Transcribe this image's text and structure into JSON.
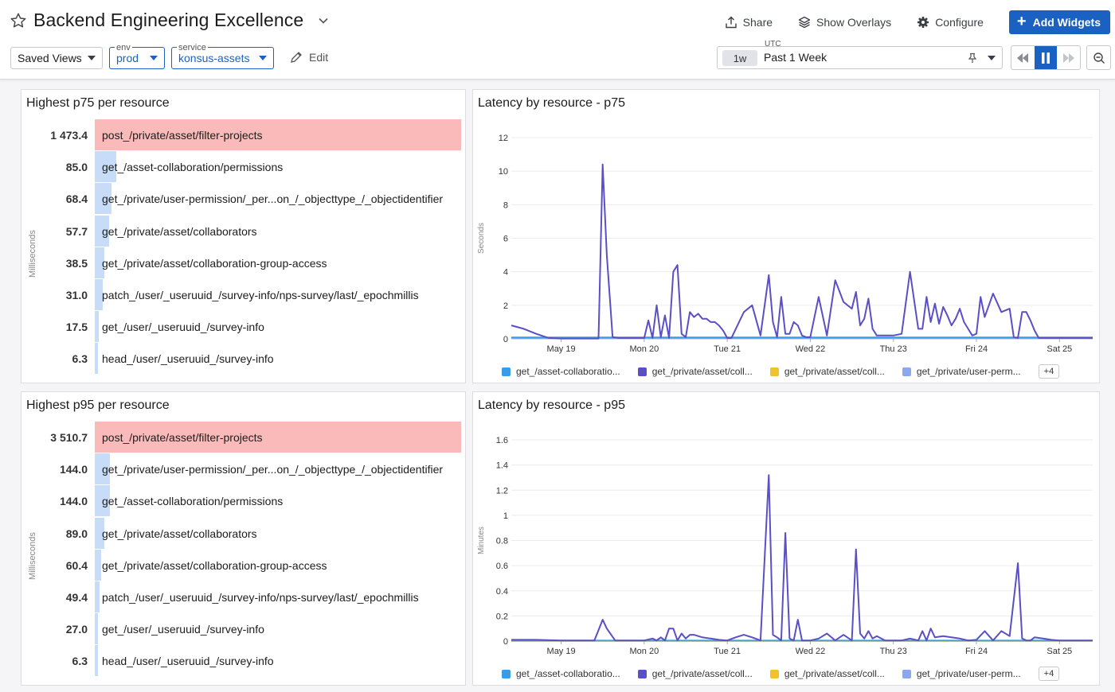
{
  "dashboard": {
    "title": "Backend Engineering Excellence",
    "actions": {
      "share": "Share",
      "overlays": "Show Overlays",
      "configure": "Configure",
      "add_widgets": "Add Widgets"
    },
    "controls": {
      "saved_views": "Saved Views",
      "env_label": "env",
      "env_value": "prod",
      "service_label": "service",
      "service_value": "konsus-assets",
      "edit": "Edit"
    },
    "time": {
      "timezone": "UTC",
      "shortcut": "1w",
      "label": "Past 1 Week"
    },
    "colors": {
      "accent": "#1a61c2",
      "series_main": "#5b4fc5",
      "bar": "#c6dcf7",
      "bar_top": "#fbbaba"
    }
  },
  "widgets": {
    "p75_toplist": {
      "title": "Highest p75 per resource",
      "unit": "Milliseconds",
      "rows": [
        {
          "value": "1 473.4",
          "num": 1473.4,
          "name": "post_/private/asset/filter-projects"
        },
        {
          "value": "85.0",
          "num": 85.0,
          "name": "get_/asset-collaboration/permissions"
        },
        {
          "value": "68.4",
          "num": 68.4,
          "name": "get_/private/user-permission/_per...on_/_objecttype_/_objectidentifier"
        },
        {
          "value": "57.7",
          "num": 57.7,
          "name": "get_/private/asset/collaborators"
        },
        {
          "value": "38.5",
          "num": 38.5,
          "name": "get_/private/asset/collaboration-group-access"
        },
        {
          "value": "31.0",
          "num": 31.0,
          "name": "patch_/user/_useruuid_/survey-info/nps-survey/last/_epochmillis"
        },
        {
          "value": "17.5",
          "num": 17.5,
          "name": "get_/user/_useruuid_/survey-info"
        },
        {
          "value": "6.3",
          "num": 6.3,
          "name": "head_/user/_useruuid_/survey-info"
        }
      ]
    },
    "p95_toplist": {
      "title": "Highest p95 per resource",
      "unit": "Milliseconds",
      "rows": [
        {
          "value": "3 510.7",
          "num": 3510.7,
          "name": "post_/private/asset/filter-projects"
        },
        {
          "value": "144.0",
          "num": 144.0,
          "name": "get_/private/user-permission/_per...on_/_objecttype_/_objectidentifier"
        },
        {
          "value": "144.0",
          "num": 144.0,
          "name": "get_/asset-collaboration/permissions"
        },
        {
          "value": "89.0",
          "num": 89.0,
          "name": "get_/private/asset/collaborators"
        },
        {
          "value": "60.4",
          "num": 60.4,
          "name": "get_/private/asset/collaboration-group-access"
        },
        {
          "value": "49.4",
          "num": 49.4,
          "name": "patch_/user/_useruuid_/survey-info/nps-survey/last/_epochmillis"
        },
        {
          "value": "27.0",
          "num": 27.0,
          "name": "get_/user/_useruuid_/survey-info"
        },
        {
          "value": "6.3",
          "num": 6.3,
          "name": "head_/user/_useruuid_/survey-info"
        }
      ]
    },
    "p75_line": {
      "title": "Latency by resource - p75",
      "legend_more": "+4"
    },
    "p95_line": {
      "title": "Latency by resource - p95",
      "legend_more": "+4"
    }
  },
  "chart_data": [
    {
      "type": "line",
      "title": "Latency by resource - p75",
      "ylabel": "Seconds",
      "ylim": [
        0,
        12
      ],
      "yticks": [
        "0",
        "2",
        "4",
        "6",
        "8",
        "10",
        "12"
      ],
      "xticks": [
        "May 19",
        "Mon 20",
        "Tue 21",
        "Wed 22",
        "Thu 23",
        "Fri 24",
        "Sat 25"
      ],
      "xlim": [
        -0.6,
        6.4
      ],
      "legend": [
        {
          "name": "get_/asset-collaboratio...",
          "color": "#3a9ce8"
        },
        {
          "name": "get_/private/asset/coll...",
          "color": "#5b4fc5"
        },
        {
          "name": "get_/private/asset/coll...",
          "color": "#f2c12e"
        },
        {
          "name": "get_/private/user-perm...",
          "color": "#8aa8f0"
        }
      ],
      "series": [
        {
          "color": "#5b4fc5",
          "x": [
            -0.6,
            -0.45,
            -0.3,
            -0.15,
            0.0,
            0.1,
            0.2,
            0.3,
            0.45,
            0.5,
            0.55,
            0.62,
            0.7,
            0.8,
            0.9,
            1.0,
            1.05,
            1.1,
            1.15,
            1.2,
            1.25,
            1.3,
            1.35,
            1.4,
            1.45,
            1.5,
            1.55,
            1.6,
            1.65,
            1.7,
            1.75,
            1.8,
            1.85,
            1.9,
            1.95,
            2.0,
            2.05,
            2.2,
            2.3,
            2.4,
            2.5,
            2.55,
            2.6,
            2.65,
            2.7,
            2.75,
            2.8,
            2.85,
            2.9,
            2.95,
            3.0,
            3.1,
            3.2,
            3.3,
            3.4,
            3.5,
            3.55,
            3.6,
            3.65,
            3.7,
            3.75,
            3.8,
            3.85,
            3.9,
            4.0,
            4.1,
            4.2,
            4.3,
            4.35,
            4.4,
            4.45,
            4.5,
            4.55,
            4.6,
            4.65,
            4.7,
            4.75,
            4.8,
            4.85,
            4.9,
            4.95,
            5.0,
            5.05,
            5.1,
            5.2,
            5.3,
            5.4,
            5.45,
            5.5,
            5.55,
            5.6,
            5.65,
            5.7,
            5.75,
            5.8,
            5.85,
            5.9,
            5.95,
            6.0,
            6.1,
            6.2,
            6.3,
            6.4
          ],
          "y": [
            0.8,
            0.6,
            0.3,
            0.05,
            0.02,
            0.02,
            0.02,
            0.02,
            0.02,
            10.4,
            5.0,
            0.1,
            0.05,
            0.05,
            0.05,
            0.05,
            1.1,
            0.05,
            2.0,
            0.1,
            1.4,
            0.05,
            4.0,
            4.4,
            0.3,
            0.1,
            1.6,
            1.3,
            1.5,
            1.2,
            1.2,
            1.0,
            1.0,
            0.8,
            0.5,
            0.05,
            0.05,
            1.6,
            2.0,
            0.2,
            3.8,
            1.0,
            0.1,
            2.5,
            0.3,
            0.3,
            1.0,
            0.8,
            0.2,
            0.1,
            0.1,
            2.5,
            0.2,
            3.5,
            2.2,
            1.8,
            2.8,
            0.8,
            1.2,
            2.4,
            0.6,
            0.2,
            0.2,
            0.2,
            0.2,
            0.3,
            4.0,
            0.6,
            0.6,
            2.5,
            1.0,
            2.1,
            0.9,
            1.9,
            1.4,
            0.8,
            1.2,
            1.8,
            1.0,
            0.6,
            0.2,
            0.3,
            2.5,
            1.3,
            2.7,
            1.6,
            1.8,
            0.1,
            0.05,
            1.6,
            1.6,
            1.1,
            0.5,
            0.05,
            0.05,
            0.05,
            0.05,
            0.05,
            0.05,
            0.05,
            0.05,
            0.05,
            0.05
          ]
        },
        {
          "color": "#3a9ce8",
          "x": [
            -0.6,
            6.4
          ],
          "y": [
            0.08,
            0.08
          ]
        },
        {
          "color": "#8aa8f0",
          "x": [
            -0.6,
            6.4
          ],
          "y": [
            0.04,
            0.04
          ]
        }
      ]
    },
    {
      "type": "line",
      "title": "Latency by resource - p95",
      "ylabel": "Minutes",
      "ylim": [
        0,
        1.6
      ],
      "yticks": [
        "0",
        "0.2",
        "0.4",
        "0.6",
        "0.8",
        "1",
        "1.2",
        "1.4",
        "1.6"
      ],
      "xticks": [
        "May 19",
        "Mon 20",
        "Tue 21",
        "Wed 22",
        "Thu 23",
        "Fri 24",
        "Sat 25"
      ],
      "xlim": [
        -0.6,
        6.4
      ],
      "legend": [
        {
          "name": "get_/asset-collaboratio...",
          "color": "#3a9ce8"
        },
        {
          "name": "get_/private/asset/coll...",
          "color": "#5b4fc5"
        },
        {
          "name": "get_/private/asset/coll...",
          "color": "#f2c12e"
        },
        {
          "name": "get_/private/user-perm...",
          "color": "#8aa8f0"
        }
      ],
      "series": [
        {
          "color": "#5b4fc5",
          "x": [
            -0.6,
            -0.3,
            0.0,
            0.2,
            0.4,
            0.5,
            0.55,
            0.65,
            0.75,
            0.9,
            1.0,
            1.1,
            1.15,
            1.2,
            1.25,
            1.3,
            1.35,
            1.4,
            1.45,
            1.5,
            1.55,
            1.6,
            1.7,
            1.8,
            1.9,
            2.0,
            2.1,
            2.2,
            2.3,
            2.4,
            2.5,
            2.55,
            2.6,
            2.65,
            2.7,
            2.75,
            2.8,
            2.85,
            2.9,
            2.95,
            3.0,
            3.1,
            3.2,
            3.3,
            3.4,
            3.5,
            3.55,
            3.6,
            3.65,
            3.7,
            3.75,
            3.8,
            3.9,
            4.0,
            4.1,
            4.2,
            4.3,
            4.35,
            4.4,
            4.45,
            4.5,
            4.6,
            4.7,
            4.8,
            4.9,
            5.0,
            5.1,
            5.2,
            5.3,
            5.4,
            5.5,
            5.55,
            5.6,
            5.65,
            5.7,
            5.8,
            5.9,
            6.0,
            6.2,
            6.4
          ],
          "y": [
            0.01,
            0.01,
            0.005,
            0.005,
            0.005,
            0.17,
            0.1,
            0.005,
            0.005,
            0.005,
            0.005,
            0.02,
            0.005,
            0.03,
            0.005,
            0.1,
            0.1,
            0.005,
            0.06,
            0.02,
            0.05,
            0.05,
            0.03,
            0.02,
            0.01,
            0.005,
            0.03,
            0.05,
            0.03,
            0.005,
            1.32,
            0.05,
            0.03,
            0.005,
            0.86,
            0.02,
            0.005,
            0.17,
            0.005,
            0.005,
            0.005,
            0.02,
            0.06,
            0.005,
            0.05,
            0.005,
            0.73,
            0.06,
            0.02,
            0.08,
            0.02,
            0.04,
            0.005,
            0.005,
            0.005,
            0.02,
            0.005,
            0.08,
            0.005,
            0.1,
            0.03,
            0.04,
            0.03,
            0.02,
            0.005,
            0.01,
            0.08,
            0.005,
            0.08,
            0.04,
            0.62,
            0.02,
            0.005,
            0.005,
            0.03,
            0.02,
            0.01,
            0.005,
            0.005,
            0.005
          ]
        },
        {
          "color": "#3a9ce8",
          "x": [
            -0.6,
            6.4
          ],
          "y": [
            0.004,
            0.004
          ]
        },
        {
          "color": "#f2c12e",
          "x": [
            -0.6,
            6.4
          ],
          "y": [
            0.002,
            0.002
          ]
        }
      ]
    }
  ]
}
